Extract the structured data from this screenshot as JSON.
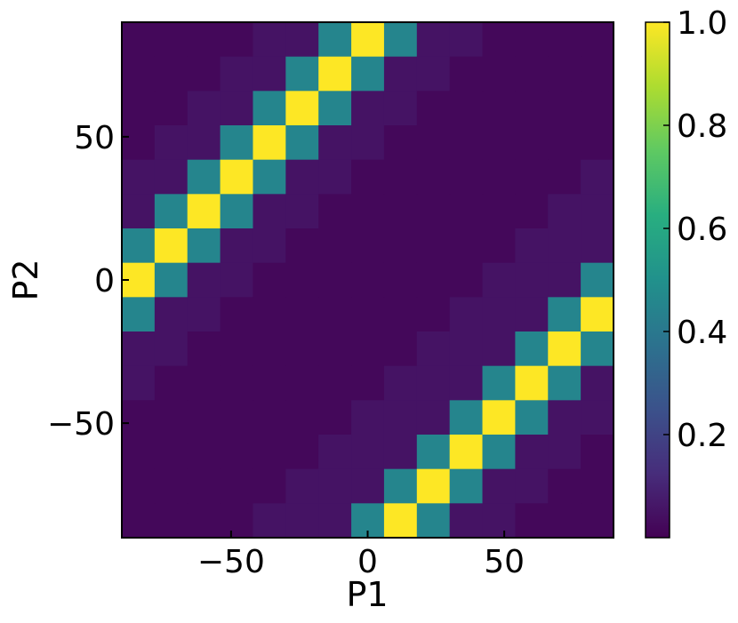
{
  "chart_data": {
    "type": "heatmap",
    "xlabel": "P1",
    "ylabel": "P2",
    "x_range": [
      -90,
      90
    ],
    "y_range": [
      -90,
      90
    ],
    "x_ticks": [
      -50,
      0,
      50
    ],
    "y_ticks": [
      -50,
      0,
      50
    ],
    "x_tick_labels": [
      "−50",
      "0",
      "50"
    ],
    "y_tick_labels": [
      "−50",
      "0",
      "50"
    ],
    "colormap": "viridis",
    "colorbar": {
      "range": [
        0.0,
        1.0
      ],
      "ticks": [
        0.2,
        0.4,
        0.6,
        0.8,
        1.0
      ],
      "tick_labels": [
        "0.2",
        "0.4",
        "0.6",
        "0.8",
        "1.0"
      ]
    },
    "bins_x": 15,
    "bins_y": 15,
    "grid_rows_top_to_bottom": [
      [
        0.02,
        0.02,
        0.02,
        0.02,
        0.05,
        0.05,
        0.45,
        1.0,
        0.45,
        0.05,
        0.05,
        0.02,
        0.02,
        0.02,
        0.02
      ],
      [
        0.02,
        0.02,
        0.02,
        0.05,
        0.05,
        0.45,
        1.0,
        0.45,
        0.05,
        0.05,
        0.02,
        0.02,
        0.02,
        0.02,
        0.02
      ],
      [
        0.02,
        0.02,
        0.05,
        0.05,
        0.45,
        1.0,
        0.45,
        0.05,
        0.05,
        0.02,
        0.02,
        0.02,
        0.02,
        0.02,
        0.02
      ],
      [
        0.02,
        0.05,
        0.05,
        0.45,
        1.0,
        0.45,
        0.05,
        0.05,
        0.02,
        0.02,
        0.02,
        0.02,
        0.02,
        0.02,
        0.02
      ],
      [
        0.05,
        0.05,
        0.45,
        1.0,
        0.45,
        0.05,
        0.05,
        0.02,
        0.02,
        0.02,
        0.02,
        0.02,
        0.02,
        0.02,
        0.05
      ],
      [
        0.05,
        0.45,
        1.0,
        0.45,
        0.05,
        0.05,
        0.02,
        0.02,
        0.02,
        0.02,
        0.02,
        0.02,
        0.02,
        0.05,
        0.05
      ],
      [
        0.45,
        1.0,
        0.45,
        0.05,
        0.05,
        0.02,
        0.02,
        0.02,
        0.02,
        0.02,
        0.02,
        0.02,
        0.05,
        0.05,
        0.05
      ],
      [
        1.0,
        0.45,
        0.05,
        0.05,
        0.02,
        0.02,
        0.02,
        0.02,
        0.02,
        0.02,
        0.02,
        0.05,
        0.05,
        0.05,
        0.45
      ],
      [
        0.45,
        0.05,
        0.05,
        0.02,
        0.02,
        0.02,
        0.02,
        0.02,
        0.02,
        0.02,
        0.05,
        0.05,
        0.05,
        0.45,
        1.0
      ],
      [
        0.05,
        0.05,
        0.02,
        0.02,
        0.02,
        0.02,
        0.02,
        0.02,
        0.02,
        0.05,
        0.05,
        0.05,
        0.45,
        1.0,
        0.45
      ],
      [
        0.05,
        0.02,
        0.02,
        0.02,
        0.02,
        0.02,
        0.02,
        0.02,
        0.05,
        0.05,
        0.05,
        0.45,
        1.0,
        0.45,
        0.05
      ],
      [
        0.02,
        0.02,
        0.02,
        0.02,
        0.02,
        0.02,
        0.02,
        0.05,
        0.05,
        0.05,
        0.45,
        1.0,
        0.45,
        0.05,
        0.05
      ],
      [
        0.02,
        0.02,
        0.02,
        0.02,
        0.02,
        0.02,
        0.05,
        0.05,
        0.05,
        0.45,
        1.0,
        0.45,
        0.05,
        0.05,
        0.02
      ],
      [
        0.02,
        0.02,
        0.02,
        0.02,
        0.02,
        0.05,
        0.05,
        0.05,
        0.45,
        1.0,
        0.45,
        0.05,
        0.05,
        0.02,
        0.02
      ],
      [
        0.02,
        0.02,
        0.02,
        0.02,
        0.05,
        0.05,
        0.05,
        0.45,
        1.0,
        0.45,
        0.05,
        0.05,
        0.02,
        0.02,
        0.02
      ]
    ]
  }
}
